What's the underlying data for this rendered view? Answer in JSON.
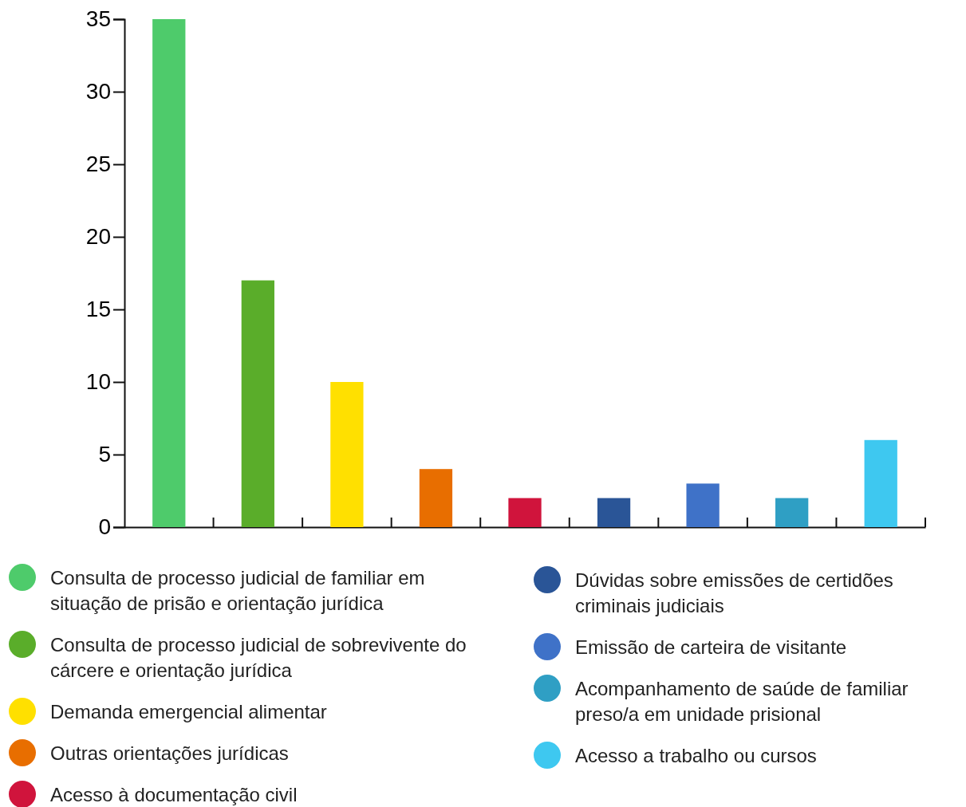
{
  "chart_data": {
    "type": "bar",
    "categories": [
      null,
      null,
      null,
      null,
      null,
      null,
      null,
      null,
      null
    ],
    "series": [
      {
        "name": "Consulta de processo judicial de familiar em situação de prisão e orientação jurídica",
        "color": "#4ecb6b",
        "values": [
          35,
          null,
          null,
          null,
          null,
          null,
          null,
          null,
          null
        ]
      },
      {
        "name": "Consulta de processo judicial de sobrevivente do cárcere e orientação jurídica",
        "color": "#5aad2a",
        "values": [
          null,
          17,
          null,
          null,
          null,
          null,
          null,
          null,
          null
        ]
      },
      {
        "name": "Demanda emergencial alimentar",
        "color": "#ffe000",
        "values": [
          null,
          null,
          10,
          null,
          null,
          null,
          null,
          null,
          null
        ]
      },
      {
        "name": "Outras orientações jurídicas",
        "color": "#e86e00",
        "values": [
          null,
          null,
          null,
          4,
          null,
          null,
          null,
          null,
          null
        ]
      },
      {
        "name": "Acesso à documentação civil",
        "color": "#d0143c",
        "values": [
          null,
          null,
          null,
          null,
          2,
          null,
          null,
          null,
          null
        ]
      },
      {
        "name": "Dúvidas sobre emissões de certidões criminais judiciais",
        "color": "#2a5597",
        "values": [
          null,
          null,
          null,
          null,
          null,
          2,
          null,
          null,
          null
        ]
      },
      {
        "name": "Emissão de carteira de visitante",
        "color": "#3f72c8",
        "values": [
          null,
          null,
          null,
          null,
          null,
          null,
          3,
          null,
          null
        ]
      },
      {
        "name": "Acompanhamento de saúde de familiar preso/a em unidade prisional",
        "color": "#2f9fc4",
        "values": [
          null,
          null,
          null,
          null,
          null,
          null,
          null,
          2,
          null
        ]
      },
      {
        "name": "Acesso a trabalho ou cursos",
        "color": "#3ec8f0",
        "values": [
          null,
          null,
          null,
          null,
          null,
          null,
          null,
          null,
          6
        ]
      }
    ],
    "ylim": [
      0,
      35
    ],
    "yticks": [
      0,
      5,
      10,
      15,
      20,
      25,
      30,
      35
    ],
    "grid": false,
    "legend": "bottom"
  }
}
